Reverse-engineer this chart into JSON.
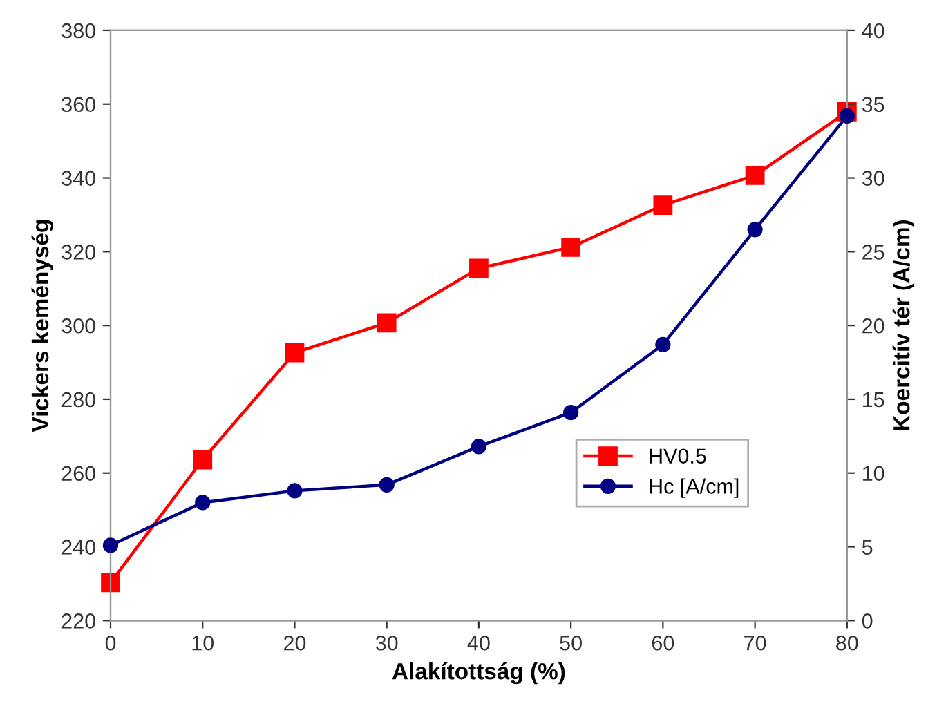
{
  "chart_data": {
    "type": "line",
    "xlabel": "Alakítottság (%)",
    "ylabel": "Vickers keménység",
    "y2label": "Koercitív tér (A/cm)",
    "x": [
      0,
      10,
      20,
      30,
      40,
      50,
      60,
      70,
      80
    ],
    "series": [
      {
        "name": "HV0.5",
        "color": "#ff0000",
        "marker": "square",
        "values": [
          230.3,
          263.6,
          292.6,
          300.7,
          315.5,
          321.2,
          332.6,
          340.7,
          357.9
        ]
      },
      {
        "name": "Hc [A/cm]",
        "color": "#000080",
        "marker": "circle",
        "axis": "y2",
        "values": [
          5.1,
          8.0,
          8.8,
          9.2,
          11.8,
          14.1,
          18.7,
          26.5,
          34.2
        ]
      }
    ],
    "xlim": [
      0,
      80
    ],
    "xticks": [
      0,
      10,
      20,
      30,
      40,
      50,
      60,
      70,
      80
    ],
    "ylim": [
      220,
      380
    ],
    "yticks": [
      220,
      240,
      260,
      280,
      300,
      320,
      340,
      360,
      380
    ],
    "y2lim": [
      0,
      40
    ],
    "y2ticks": [
      0,
      5,
      10,
      15,
      20,
      25,
      30,
      35,
      40
    ],
    "grid": false,
    "legend": "right",
    "line_style": "solid"
  }
}
